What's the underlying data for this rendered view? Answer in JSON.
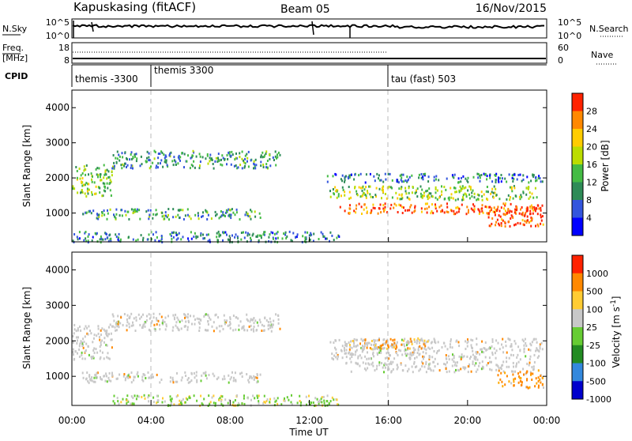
{
  "header": {
    "station": "Kapuskasing (fitACF)",
    "beam": "Beam 05",
    "date": "16/Nov/2015"
  },
  "noise_panel": {
    "left_label": "N.Sky",
    "right_label": "N.Search",
    "yticks_left": [
      "10^5",
      "10^0"
    ],
    "yticks_right": [
      "10^5",
      "10^0"
    ]
  },
  "freq_panel": {
    "left_label_top": "Freq.",
    "left_label_bottom": "[MHz]",
    "right_label": "Nave",
    "yticks_left": [
      "18",
      "8"
    ],
    "yticks_right": [
      "60",
      "0"
    ]
  },
  "cpid_panel": {
    "label": "CPID",
    "segments": [
      {
        "label": "themis -3300",
        "start_hour": 0,
        "end_hour": 4
      },
      {
        "label": "themis 3300",
        "start_hour": 4,
        "end_hour": 16
      },
      {
        "label": "tau (fast) 503",
        "start_hour": 16,
        "end_hour": 24
      }
    ]
  },
  "chart_data": [
    {
      "type": "heatmap",
      "title": "Power",
      "ylabel": "Slant Range [km]",
      "xlabel": "Time UT",
      "xlim": [
        0,
        24
      ],
      "ylim": [
        180,
        4500
      ],
      "yticks": [
        1000,
        2000,
        3000,
        4000
      ],
      "colorbar": {
        "label": "Power [dB]",
        "ticks": [
          "4",
          "8",
          "12",
          "16",
          "20",
          "24",
          "28"
        ],
        "range": [
          0,
          30
        ],
        "colors": [
          "#0000ff",
          "#3355dd",
          "#2e8b57",
          "#44bb44",
          "#bbdd00",
          "#ffcc00",
          "#ff8800",
          "#ff2200"
        ]
      },
      "echo_regions": [
        {
          "t0": 0.0,
          "t1": 2.0,
          "r0": 1500,
          "r1": 2400,
          "level": 14
        },
        {
          "t0": 2.0,
          "t1": 10.5,
          "r0": 2300,
          "r1": 2800,
          "level": 10
        },
        {
          "t0": 0.5,
          "t1": 9.5,
          "r0": 850,
          "r1": 1150,
          "level": 11
        },
        {
          "t0": 0.0,
          "t1": 13.5,
          "r0": 200,
          "r1": 500,
          "level": 9
        },
        {
          "t0": 12.8,
          "t1": 23.8,
          "r0": 1900,
          "r1": 2150,
          "level": 8
        },
        {
          "t0": 13.0,
          "t1": 23.5,
          "r0": 1400,
          "r1": 1800,
          "level": 15
        },
        {
          "t0": 13.5,
          "t1": 23.8,
          "r0": 1000,
          "r1": 1300,
          "level": 26
        },
        {
          "t0": 21.0,
          "t1": 23.8,
          "r0": 650,
          "r1": 1200,
          "level": 28
        }
      ]
    },
    {
      "type": "heatmap",
      "title": "Velocity",
      "ylabel": "Slant Range [km]",
      "xlabel": "Time UT",
      "xlim": [
        0,
        24
      ],
      "ylim": [
        180,
        4500
      ],
      "yticks": [
        1000,
        2000,
        3000,
        4000
      ],
      "xticks": [
        "00:00",
        "04:00",
        "08:00",
        "12:00",
        "16:00",
        "20:00",
        "00:00"
      ],
      "colorbar": {
        "label": "Velocity [m s^-1]",
        "ticks": [
          "1000",
          "500",
          "100",
          "25",
          "-25",
          "-100",
          "-500",
          "-1000"
        ],
        "colors": [
          "#0000cc",
          "#3388dd",
          "#228b22",
          "#66cc33",
          "#c8c8c8",
          "#ffcc33",
          "#ff8800",
          "#ff2200"
        ]
      },
      "echo_regions": [
        {
          "t0": 0.0,
          "t1": 2.0,
          "r0": 1500,
          "r1": 2500,
          "class": "ground"
        },
        {
          "t0": 2.0,
          "t1": 10.5,
          "r0": 2300,
          "r1": 2800,
          "class": "ground"
        },
        {
          "t0": 0.5,
          "t1": 9.5,
          "r0": 850,
          "r1": 1150,
          "class": "ground"
        },
        {
          "t0": 2.0,
          "t1": 13.5,
          "r0": 200,
          "r1": 500,
          "class": "slow_positive"
        },
        {
          "t0": 13.0,
          "t1": 23.8,
          "r0": 1500,
          "r1": 2100,
          "class": "ground"
        },
        {
          "t0": 13.8,
          "t1": 23.5,
          "r0": 1150,
          "r1": 1450,
          "class": "ground"
        },
        {
          "t0": 14.0,
          "t1": 18.0,
          "r0": 1800,
          "r1": 2100,
          "class": "negative"
        },
        {
          "t0": 21.5,
          "t1": 23.8,
          "r0": 700,
          "r1": 1200,
          "class": "negative_strong"
        }
      ]
    }
  ]
}
